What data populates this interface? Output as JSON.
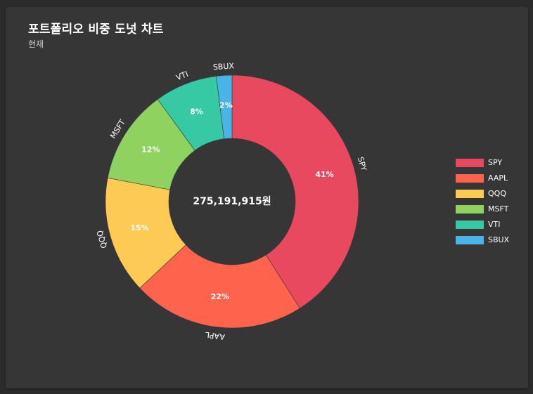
{
  "header": {
    "title": "포트폴리오 비중 도넛 차트",
    "subtitle": "현재"
  },
  "chart_data": {
    "type": "pie",
    "title": "포트폴리오 비중 도넛 차트",
    "subtitle": "현재",
    "center_text": "275,191,915원",
    "legend_position": "right",
    "slices": [
      {
        "label": "SPY",
        "value": 41,
        "value_label": "41%",
        "color": "#e8495f"
      },
      {
        "label": "AAPL",
        "value": 22,
        "value_label": "22%",
        "color": "#fe634e"
      },
      {
        "label": "QQQ",
        "value": 15,
        "value_label": "15%",
        "color": "#fdcb54"
      },
      {
        "label": "MSFT",
        "value": 12,
        "value_label": "12%",
        "color": "#8fd260"
      },
      {
        "label": "VTI",
        "value": 8,
        "value_label": "8%",
        "color": "#36c9a3"
      },
      {
        "label": "SBUX",
        "value": 2,
        "value_label": "2%",
        "color": "#4ab4e6"
      }
    ]
  }
}
